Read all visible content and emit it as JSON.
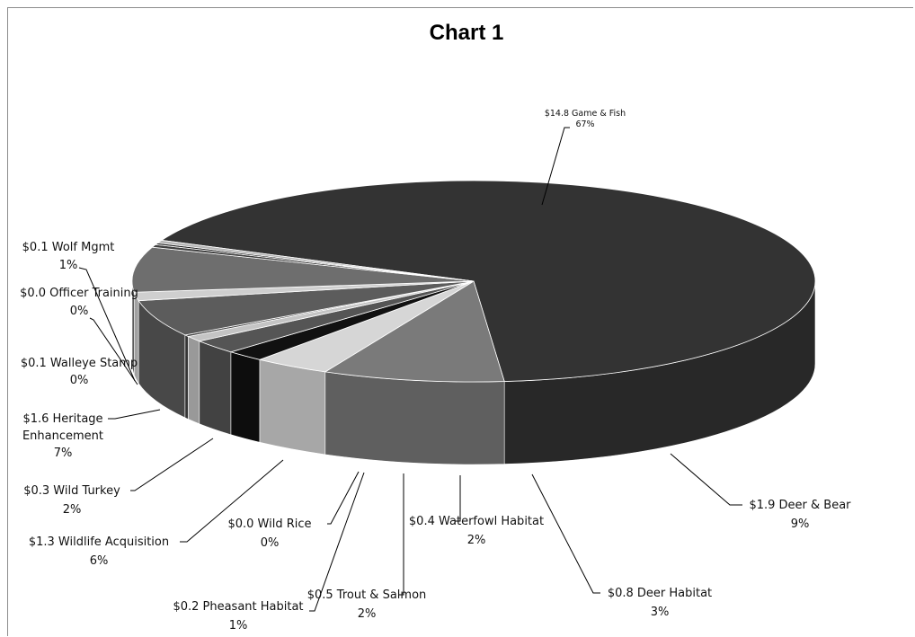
{
  "chart_data": {
    "type": "pie",
    "title": "Chart 1",
    "unit_prefix": "$",
    "slices": [
      {
        "label": "Game & Fish",
        "value": 14.8,
        "value_text": "$14.8",
        "percent_text": "67%",
        "color": "#333333"
      },
      {
        "label": "Deer & Bear",
        "value": 1.9,
        "value_text": "$1.9",
        "percent_text": "9%",
        "color": "#7a7a7a"
      },
      {
        "label": "Deer Habitat",
        "value": 0.8,
        "value_text": "$0.8",
        "percent_text": "3%",
        "color": "#d6d6d6"
      },
      {
        "label": "Waterfowl Habitat",
        "value": 0.4,
        "value_text": "$0.4",
        "percent_text": "2%",
        "color": "#111111"
      },
      {
        "label": "Trout & Salmon",
        "value": 0.5,
        "value_text": "$0.5",
        "percent_text": "2%",
        "color": "#555555"
      },
      {
        "label": "Pheasant Habitat",
        "value": 0.2,
        "value_text": "$0.2",
        "percent_text": "1%",
        "color": "#c4c4c4"
      },
      {
        "label": "Wild Rice",
        "value": 0.0,
        "value_text": "$0.0",
        "percent_text": "0%",
        "color": "#444444"
      },
      {
        "label": "Wildlife Acquisition",
        "value": 1.3,
        "value_text": "$1.3",
        "percent_text": "6%",
        "color": "#5c5c5c"
      },
      {
        "label": "Wild Turkey",
        "value": 0.3,
        "value_text": "$0.3",
        "percent_text": "2%",
        "color": "#cfcfcf"
      },
      {
        "label": "Heritage Enhancement",
        "value": 1.6,
        "value_text": "$1.6",
        "percent_text": "7%",
        "color": "#6e6e6e"
      },
      {
        "label": "Walleye Stamp",
        "value": 0.1,
        "value_text": "$0.1",
        "percent_text": "0%",
        "color": "#404040"
      },
      {
        "label": "Officer Training",
        "value": 0.0,
        "value_text": "$0.0",
        "percent_text": "0%",
        "color": "#1e1e1e"
      },
      {
        "label": "Wolf Mgmt",
        "value": 0.1,
        "value_text": "$0.1",
        "percent_text": "1%",
        "color": "#b5b5b5"
      }
    ],
    "legend": "none",
    "style": "3d-exploded"
  },
  "label_texts": {
    "game_fish": {
      "line1": "$14.8  Game & Fish",
      "line2": "67%"
    },
    "deer_bear": {
      "line1": "$1.9  Deer & Bear",
      "line2": "9%"
    },
    "deer_habitat": {
      "line1": "$0.8  Deer Habitat",
      "line2": "3%"
    },
    "waterfowl": {
      "line1": "$0.4  Waterfowl Habitat",
      "line2": "2%"
    },
    "trout": {
      "line1": "$0.5  Trout & Salmon",
      "line2": "2%"
    },
    "pheasant": {
      "line1": "$0.2  Pheasant Habitat",
      "line2": "1%"
    },
    "wild_rice": {
      "line1": "$0.0  Wild Rice",
      "line2": "0%"
    },
    "wildlife_acq": {
      "line1": "$1.3  Wildlife Acquisition",
      "line2": "6%"
    },
    "wild_turkey": {
      "line1": "$0.3  Wild Turkey",
      "line2": "2%"
    },
    "heritage": {
      "line1": "$1.6  Heritage",
      "line2": "Enhancement",
      "line3": "7%"
    },
    "walleye": {
      "line1": "$0.1  Walleye Stamp",
      "line2": "0%"
    },
    "officer": {
      "line1": "$0.0  Officer Training",
      "line2": "0%"
    },
    "wolf": {
      "line1": "$0.1  Wolf Mgmt",
      "line2": "1%"
    }
  }
}
